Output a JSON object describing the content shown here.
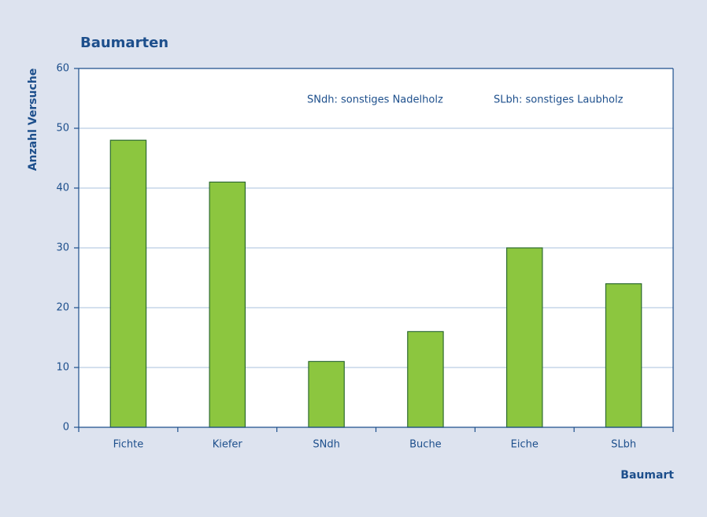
{
  "chart_data": {
    "type": "bar",
    "title": "Baumarten",
    "y_label": "Anzahl Versuche",
    "x_label": "Baumart",
    "annotations": [
      "SNdh: sonstiges Nadelholz",
      "SLbh: sonstiges Laubholz"
    ],
    "categories": [
      "Fichte",
      "Kiefer",
      "SNdh",
      "Buche",
      "Eiche",
      "SLbh"
    ],
    "values": [
      48,
      41,
      11,
      16,
      30,
      24
    ],
    "color": "#8cc63f",
    "ylim": [
      0,
      60
    ],
    "yticks": [
      0,
      10,
      20,
      30,
      40,
      50,
      60
    ],
    "grid": true
  }
}
